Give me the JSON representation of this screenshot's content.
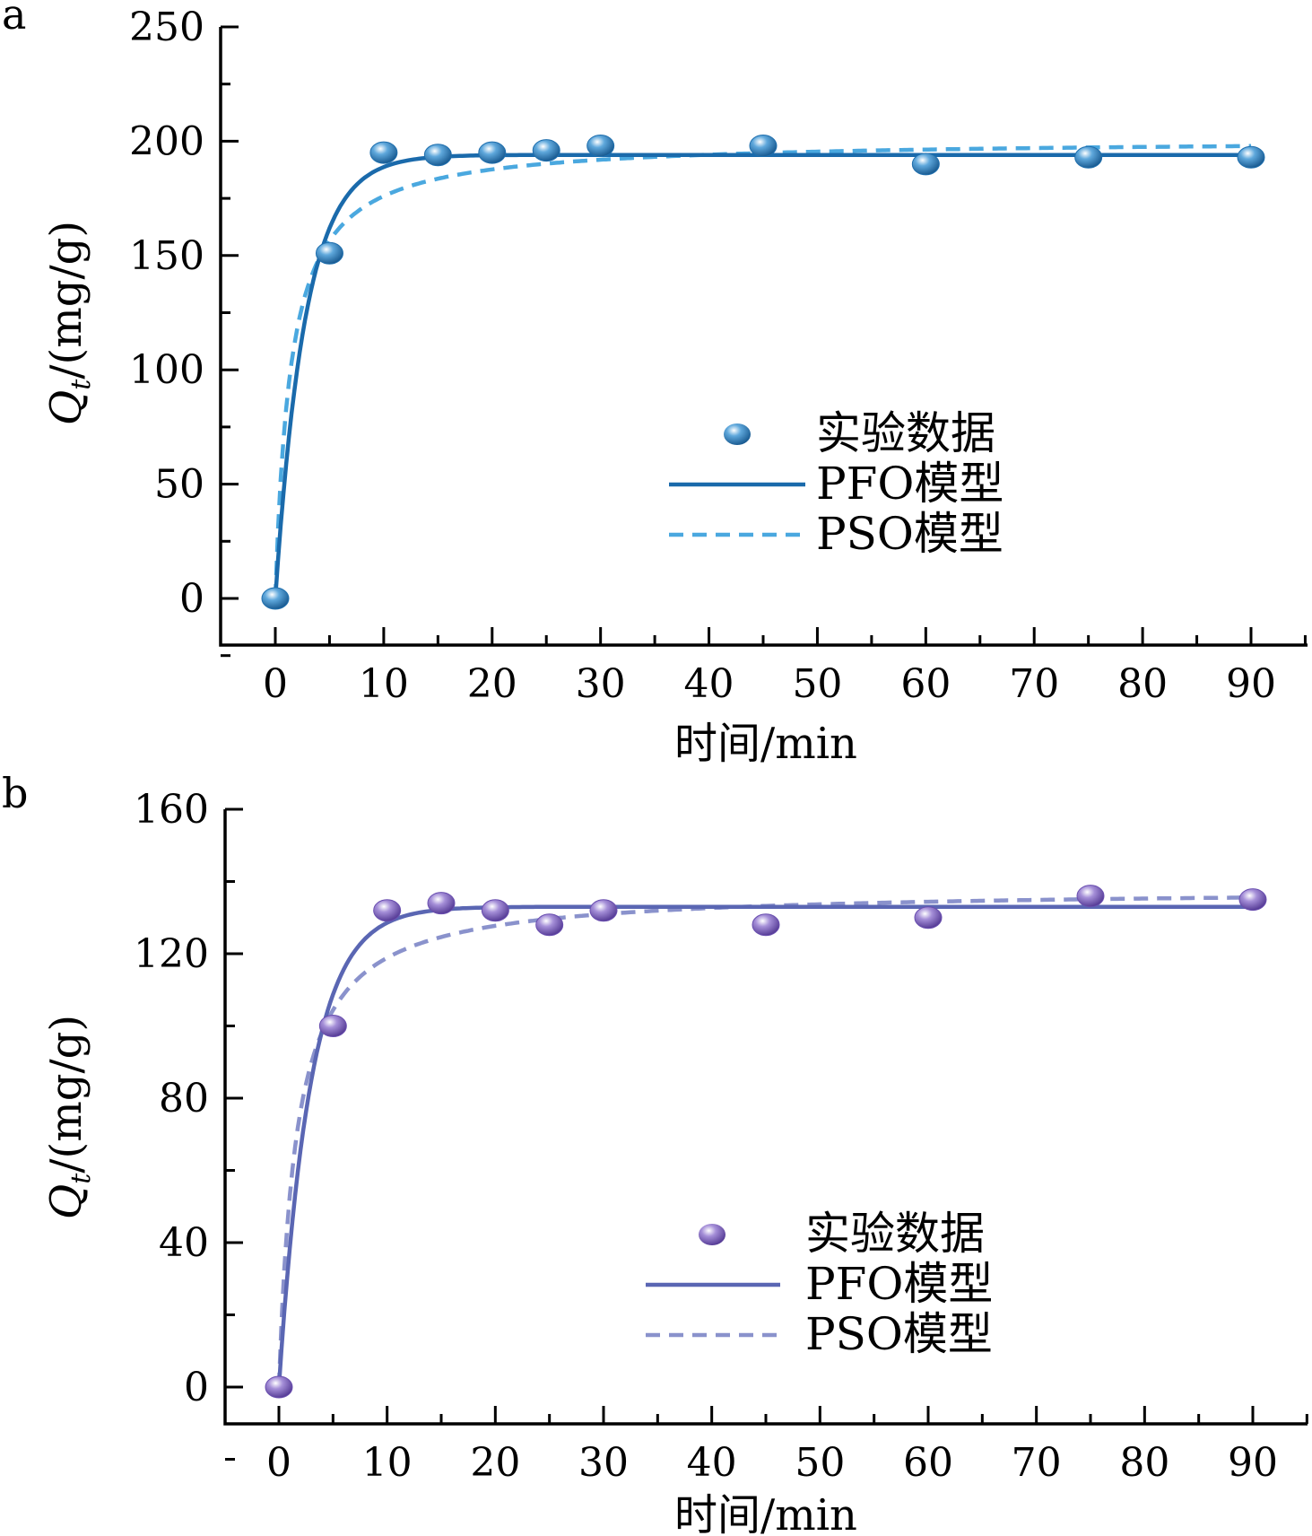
{
  "chart_data": [
    {
      "type": "scatter",
      "panel_label": "a",
      "xlabel": "时间/min",
      "ylabel": "Q",
      "ylabel_sub": "t",
      "ylabel_unit": "/(mg/g)",
      "xlim": [
        -5,
        95
      ],
      "ylim": [
        -20,
        250
      ],
      "xticks": [
        0,
        10,
        20,
        30,
        40,
        50,
        60,
        70,
        80,
        90
      ],
      "yticks": [
        0,
        50,
        100,
        150,
        200,
        250
      ],
      "legend_position": "center-right",
      "colors": {
        "points": "#1f6fae",
        "pfo": "#1a6aab",
        "pso": "#4aa8df"
      },
      "series": [
        {
          "name": "实验数据",
          "kind": "points",
          "x": [
            0,
            5,
            10,
            15,
            20,
            25,
            30,
            45,
            60,
            75,
            90
          ],
          "y": [
            0,
            151,
            195,
            194,
            195,
            196,
            198,
            198,
            190,
            193,
            193
          ]
        },
        {
          "name": "PFO模型",
          "kind": "pfo",
          "qe": 194,
          "k": 0.36
        },
        {
          "name": "PSO模型",
          "kind": "pso",
          "qe": 201,
          "k": 0.0035
        }
      ]
    },
    {
      "type": "scatter",
      "panel_label": "b",
      "xlabel": "时间/min",
      "ylabel": "Q",
      "ylabel_sub": "t",
      "ylabel_unit": "/(mg/g)",
      "xlim": [
        -5,
        95
      ],
      "ylim": [
        -10,
        160
      ],
      "xticks": [
        0,
        10,
        20,
        30,
        40,
        50,
        60,
        70,
        80,
        90
      ],
      "yticks": [
        0,
        40,
        80,
        120,
        160
      ],
      "legend_position": "center-right",
      "colors": {
        "points": "#6a4fb0",
        "pfo": "#5a66b3",
        "pso": "#8a92cc"
      },
      "series": [
        {
          "name": "实验数据",
          "kind": "points",
          "x": [
            0,
            5,
            10,
            15,
            20,
            25,
            30,
            45,
            60,
            75,
            90
          ],
          "y": [
            0,
            100,
            132,
            134,
            132,
            128,
            132,
            128,
            130,
            136,
            135
          ]
        },
        {
          "name": "PFO模型",
          "kind": "pfo",
          "qe": 133,
          "k": 0.34
        },
        {
          "name": "PSO模型",
          "kind": "pso",
          "qe": 138,
          "k": 0.0045
        }
      ]
    }
  ]
}
